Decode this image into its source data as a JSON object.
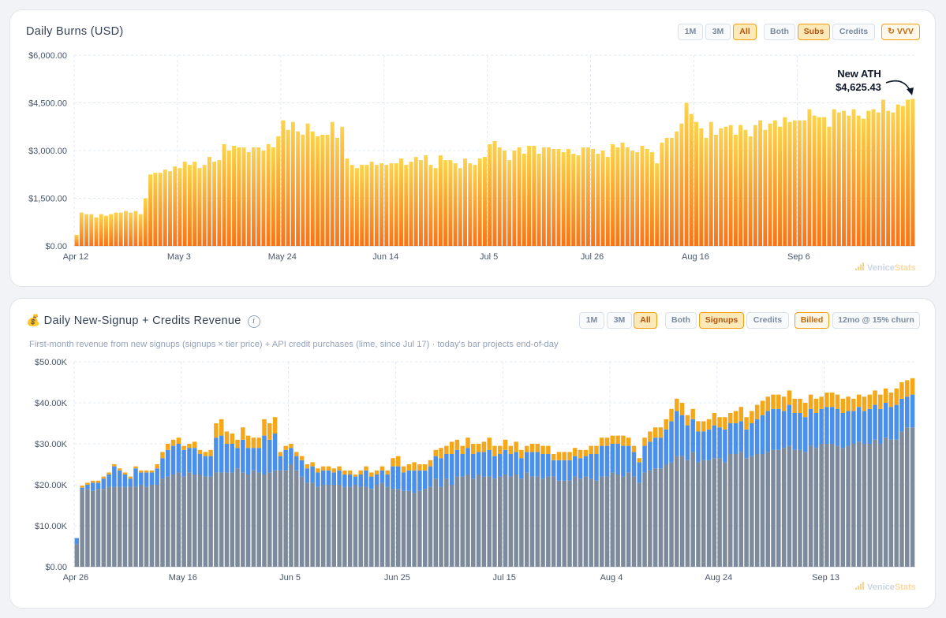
{
  "chart1": {
    "title": "Daily Burns (USD)",
    "range_buttons": [
      "1M",
      "3M",
      "All"
    ],
    "type_buttons": [
      "Both",
      "Subs",
      "Credits"
    ],
    "token_button": "↻ VVV",
    "annotation_label": "New ATH",
    "annotation_value": "$4,625.43",
    "watermark": {
      "brand": "Venice",
      "suffix": "Stats"
    }
  },
  "chart2": {
    "title": "💰 Daily New-Signup + Credits Revenue",
    "info": "i",
    "subtitle": "First-month revenue from new signups (signups × tier price) + API credit purchases (lime, since Jul 17) · today's bar projects end-of-day",
    "range_buttons": [
      "1M",
      "3M",
      "All"
    ],
    "type_buttons": [
      "Both",
      "Signups",
      "Credits"
    ],
    "billed_button": "Billed",
    "churn_button": "12mo @ 15% churn",
    "watermark": {
      "brand": "Venice",
      "suffix": "Stats"
    }
  },
  "chart_data": [
    {
      "type": "bar",
      "title": "Daily Burns (USD)",
      "x_start": "Apr 12",
      "x_ticks": [
        "Apr 12",
        "May 3",
        "May 24",
        "Jun 14",
        "Jul 5",
        "Jul 26",
        "Aug 16",
        "Sep 6"
      ],
      "y_ticks": [
        "$0.00",
        "$1,500.00",
        "$3,000.00",
        "$4,500.00",
        "$6,000.00"
      ],
      "ylim": [
        0,
        6000
      ],
      "grid": true,
      "bar_gradient": [
        "#fcd34d",
        "#f97316"
      ],
      "values": [
        350,
        1050,
        1000,
        1000,
        900,
        1000,
        950,
        1000,
        1050,
        1050,
        1100,
        1050,
        1100,
        1000,
        1500,
        2250,
        2300,
        2300,
        2400,
        2350,
        2500,
        2450,
        2650,
        2550,
        2650,
        2450,
        2550,
        2800,
        2650,
        2700,
        3200,
        3000,
        3150,
        3100,
        3100,
        2950,
        3100,
        3100,
        3000,
        3200,
        3100,
        3450,
        3950,
        3650,
        3900,
        3600,
        3500,
        3850,
        3600,
        3450,
        3500,
        3500,
        3900,
        3400,
        3750,
        2750,
        2550,
        2450,
        2550,
        2550,
        2650,
        2550,
        2600,
        2550,
        2600,
        2600,
        2750,
        2550,
        2650,
        2800,
        2700,
        2850,
        2550,
        2450,
        2850,
        2700,
        2700,
        2600,
        2450,
        2750,
        2600,
        2550,
        2750,
        2800,
        3200,
        3300,
        3100,
        3000,
        2700,
        3000,
        3100,
        2900,
        3150,
        3150,
        2900,
        3100,
        3100,
        3050,
        3050,
        2950,
        3050,
        2900,
        2850,
        3100,
        3100,
        3050,
        2900,
        3000,
        2800,
        3200,
        3100,
        3250,
        3100,
        3000,
        2950,
        3150,
        3050,
        2950,
        2600,
        3250,
        3400,
        3400,
        3600,
        3850,
        4500,
        4150,
        3900,
        3700,
        3400,
        3900,
        3500,
        3700,
        3750,
        3800,
        3500,
        3800,
        3650,
        3450,
        3800,
        3950,
        3650,
        3850,
        3950,
        3750,
        4050,
        3900,
        3950,
        3950,
        3950,
        4300,
        4100,
        4050,
        4050,
        3750,
        4300,
        4200,
        4250,
        4100,
        4300,
        4100,
        4000,
        4250,
        4300,
        4200,
        4600,
        4250,
        4200,
        4450,
        4400,
        4600,
        4625.43
      ],
      "annotation": {
        "label": "New ATH",
        "value": "$4,625.43"
      }
    },
    {
      "type": "bar",
      "stacked": true,
      "title": "Daily New-Signup + Credits Revenue",
      "x_start": "Apr 26",
      "x_ticks": [
        "Apr 26",
        "May 16",
        "Jun 5",
        "Jun 25",
        "Jul 15",
        "Aug 4",
        "Aug 24",
        "Sep 13"
      ],
      "y_ticks": [
        "$0.00",
        "$10.00K",
        "$20.00K",
        "$30.00K",
        "$40.00K",
        "$50.00K"
      ],
      "ylim": [
        0,
        50000
      ],
      "grid": true,
      "series": [
        {
          "name": "base",
          "color": "#7d8a9c",
          "values": [
            5500,
            18800,
            19000,
            18500,
            19000,
            19000,
            19500,
            19500,
            19500,
            19500,
            19500,
            19500,
            20000,
            19500,
            20000,
            20000,
            21500,
            22000,
            22500,
            23000,
            22000,
            23000,
            22500,
            22500,
            22000,
            22000,
            23000,
            23000,
            23000,
            23000,
            24000,
            23000,
            22500,
            23500,
            23000,
            22500,
            23000,
            23500,
            23500,
            23500,
            25000,
            23500,
            22000,
            20500,
            20500,
            19500,
            20000,
            20000,
            20000,
            20000,
            19500,
            19500,
            20000,
            19500,
            19500,
            19000,
            20000,
            20500,
            19500,
            19000,
            19000,
            18500,
            18500,
            18000,
            18500,
            19000,
            19500,
            21500,
            19500,
            21500,
            20000,
            22000,
            22000,
            22500,
            21500,
            22500,
            22000,
            22000,
            21500,
            22000,
            22500,
            22000,
            22500,
            21500,
            23000,
            22000,
            22000,
            21500,
            22000,
            22000,
            21000,
            21000,
            21000,
            22000,
            21500,
            22000,
            21500,
            21000,
            22000,
            22000,
            23000,
            22500,
            22000,
            23000,
            22000,
            20500,
            23000,
            23500,
            24000,
            24000,
            25000,
            25500,
            27000,
            27000,
            26000,
            28000,
            25500,
            26000,
            26000,
            26500,
            26500,
            25500,
            27500,
            27500,
            28000,
            26500,
            27000,
            27500,
            27500,
            28000,
            28500,
            28500,
            29000,
            29500,
            28500,
            28500,
            28000,
            29500,
            29000,
            30000,
            30000,
            30000,
            29500,
            29000,
            29500,
            30000,
            30500,
            30000,
            30000,
            31000,
            30000,
            31500,
            31000,
            31000,
            33000,
            34000,
            34000
          ]
        },
        {
          "name": "signups",
          "color": "#4a8fea",
          "values": [
            1500,
            500,
            1000,
            2000,
            1500,
            2500,
            3000,
            5000,
            4000,
            3000,
            2000,
            4500,
            3000,
            3500,
            3000,
            4000,
            5000,
            6500,
            7000,
            7000,
            6500,
            6000,
            6500,
            5000,
            5000,
            5000,
            8500,
            9000,
            7000,
            7000,
            5000,
            8000,
            6500,
            5500,
            6000,
            9500,
            8000,
            9000,
            3500,
            5000,
            4000,
            3500,
            4000,
            3500,
            4000,
            3500,
            3500,
            3500,
            3000,
            3500,
            3000,
            3000,
            2000,
            3000,
            4000,
            3000,
            2500,
            3000,
            3000,
            5500,
            5500,
            4500,
            5000,
            5500,
            5000,
            4500,
            5000,
            5500,
            7000,
            6000,
            7500,
            6500,
            5500,
            6500,
            6000,
            5500,
            6000,
            6500,
            5500,
            5500,
            6000,
            5500,
            5500,
            5000,
            5000,
            6000,
            6000,
            6000,
            5500,
            4000,
            5000,
            5000,
            5000,
            5000,
            5000,
            5000,
            6000,
            6500,
            7500,
            7500,
            7000,
            7500,
            7500,
            6500,
            6000,
            5000,
            6500,
            7000,
            7500,
            7500,
            8500,
            10000,
            11000,
            10000,
            8500,
            8000,
            7500,
            7000,
            7500,
            8000,
            7500,
            8000,
            7500,
            7500,
            7500,
            7000,
            8000,
            8500,
            9500,
            10000,
            10000,
            10000,
            9000,
            10000,
            9000,
            9000,
            8500,
            9000,
            8500,
            8500,
            9000,
            9000,
            9000,
            8500,
            8500,
            8000,
            8500,
            8000,
            8500,
            8500,
            8500,
            8500,
            8000,
            8500,
            8000,
            7500,
            8000
          ]
        },
        {
          "name": "credits",
          "color": "#f5a71c",
          "values": [
            0,
            500,
            500,
            500,
            500,
            500,
            500,
            500,
            500,
            500,
            500,
            500,
            500,
            500,
            500,
            1000,
            1500,
            1500,
            1500,
            1500,
            1000,
            1000,
            1500,
            1000,
            1000,
            1500,
            3500,
            4000,
            3000,
            2500,
            2000,
            3000,
            3000,
            2500,
            2500,
            4000,
            4000,
            4000,
            1000,
            1000,
            1000,
            1000,
            1000,
            1000,
            1000,
            1000,
            1000,
            1000,
            1000,
            1000,
            1000,
            1000,
            500,
            1000,
            1000,
            1000,
            1000,
            1000,
            1000,
            2000,
            2500,
            1500,
            1500,
            2000,
            1500,
            1500,
            1500,
            1500,
            2500,
            2000,
            3000,
            2500,
            2000,
            2500,
            2500,
            2000,
            2500,
            3000,
            2500,
            2000,
            2500,
            2000,
            2500,
            2000,
            1500,
            2000,
            2000,
            2000,
            2000,
            1500,
            2000,
            2000,
            2000,
            2000,
            2000,
            1500,
            2000,
            2000,
            2000,
            2000,
            2000,
            2000,
            2500,
            2000,
            1500,
            1000,
            2000,
            2500,
            2500,
            2500,
            2500,
            3000,
            3000,
            3000,
            2500,
            2500,
            2500,
            2500,
            2500,
            3000,
            2500,
            3000,
            2500,
            3000,
            3500,
            3000,
            3000,
            3500,
            3500,
            3500,
            3500,
            3500,
            3500,
            3500,
            3500,
            3500,
            3500,
            3500,
            3500,
            3000,
            3500,
            3500,
            3500,
            3500,
            3500,
            3000,
            3000,
            3500,
            3500,
            3500,
            3500,
            3500,
            3500,
            4000,
            4000,
            4000,
            4000
          ]
        }
      ]
    }
  ]
}
